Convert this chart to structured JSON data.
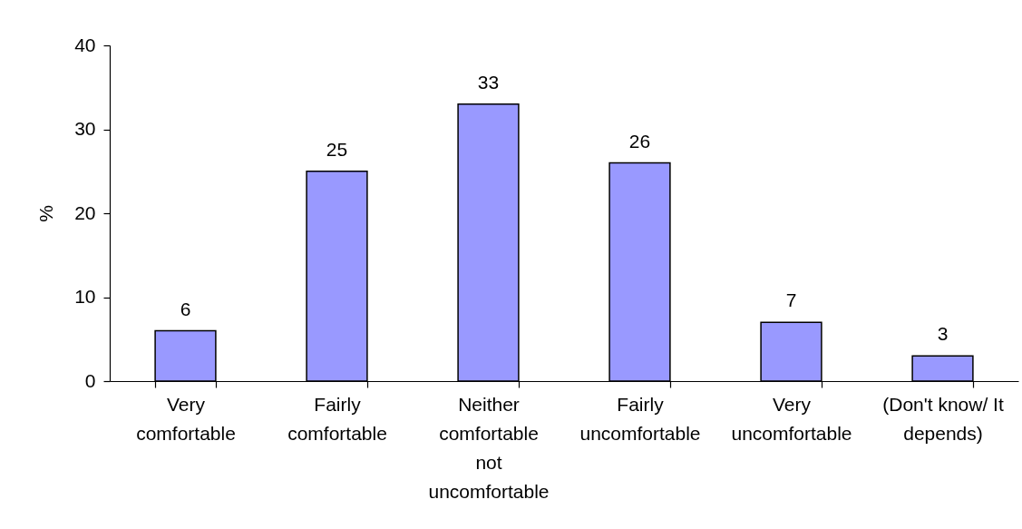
{
  "chart_data": {
    "type": "bar",
    "ylabel": "%",
    "categories": [
      "Very comfortable",
      "Fairly comfortable",
      "Neither comfortable not uncomfortable",
      "Fairly uncomfortable",
      "Very uncomfortable",
      "(Don't know/ It depends)"
    ],
    "values": [
      6,
      25,
      33,
      26,
      7,
      3
    ],
    "color": "#9999ff",
    "ylim": [
      0,
      40
    ],
    "yticks": [
      0,
      10,
      20,
      30,
      40
    ],
    "grid": false,
    "data_labels": true
  }
}
